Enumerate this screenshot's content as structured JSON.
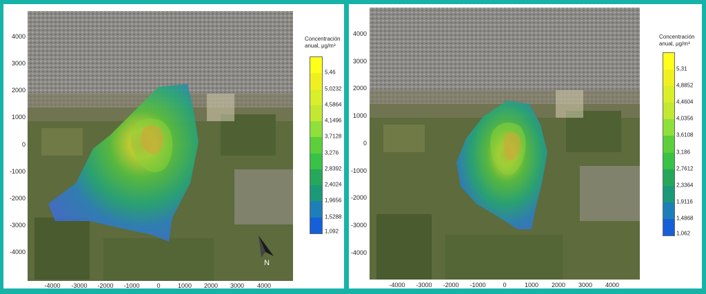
{
  "panels": [
    {
      "legend": {
        "title_line1": "Concentración",
        "title_line2": "anual, μg/m³",
        "labels": [
          "5,46",
          "5,0232",
          "4,5864",
          "4,1496",
          "3,7128",
          "3,276",
          "2,8392",
          "2,4024",
          "1,9656",
          "1,5288",
          "1,092"
        ],
        "colors": [
          "#ffff1a",
          "#f0f020",
          "#d9ef2a",
          "#c2e832",
          "#8fe03a",
          "#5ccf3a",
          "#38c246",
          "#26a85a",
          "#1a9a78",
          "#1d7fb8",
          "#1560d8"
        ]
      },
      "y_ticks": [
        "4000",
        "3000",
        "2000",
        "1000",
        "0",
        "-1000",
        "-2000",
        "-3000",
        "-4000"
      ],
      "x_ticks": [
        "-4000",
        "-3000",
        "-2000",
        "-1000",
        "0",
        "1000",
        "2000",
        "3000",
        "4000"
      ],
      "north_label": "N"
    },
    {
      "legend": {
        "title_line1": "Concentración",
        "title_line2": "anual, μg/m³",
        "labels": [
          "5,31",
          "4,8852",
          "4,4604",
          "4,0356",
          "3,6108",
          "3,186",
          "2,7612",
          "2,3364",
          "1,9116",
          "1,4868",
          "1,062"
        ],
        "colors": [
          "#ffff1a",
          "#f0f020",
          "#d9ef2a",
          "#c2e832",
          "#8fe03a",
          "#5ccf3a",
          "#38c246",
          "#26a85a",
          "#1a9a78",
          "#1d7fb8",
          "#1560d8"
        ]
      },
      "y_ticks": [
        "4000",
        "3000",
        "2000",
        "1000",
        "0",
        "-1000",
        "-2000",
        "-3000",
        "-4000"
      ],
      "x_ticks": [
        "-4000",
        "-3000",
        "-2000",
        "-1000",
        "0",
        "1000",
        "2000",
        "3000",
        "4000"
      ]
    }
  ]
}
